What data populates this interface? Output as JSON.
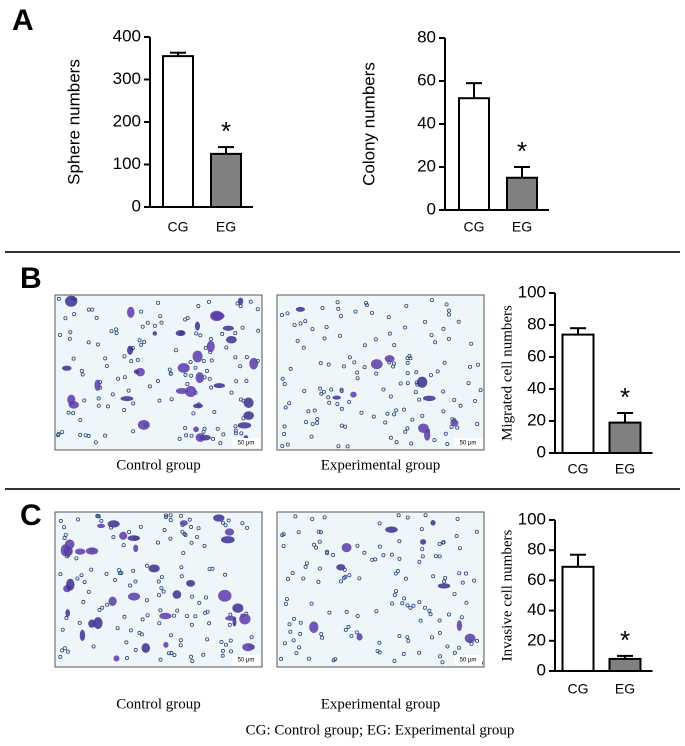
{
  "panels": [
    {
      "label": "A"
    },
    {
      "label": "B",
      "images": [
        {
          "caption": "Control group",
          "scale": "50 μm"
        },
        {
          "caption": "Experimental group",
          "scale": "50 μm"
        }
      ]
    },
    {
      "label": "C",
      "images": [
        {
          "caption": "Control group",
          "scale": "50 μm"
        },
        {
          "caption": "Experimental group",
          "scale": "50 μm"
        }
      ]
    }
  ],
  "footnote": "CG: Control group; EG: Experimental group",
  "chart_data": [
    {
      "type": "bar",
      "y_label": "Sphere numbers",
      "categories": [
        "CG",
        "EG"
      ],
      "values": [
        355,
        125
      ],
      "errors": [
        8,
        16
      ],
      "colors": [
        "#ffffff",
        "#808080"
      ],
      "annotation": "*",
      "ylim": [
        0,
        400
      ],
      "yticks": [
        0,
        100,
        200,
        300,
        400
      ]
    },
    {
      "type": "bar",
      "y_label": "Colony numbers",
      "categories": [
        "CG",
        "EG"
      ],
      "values": [
        52,
        15
      ],
      "errors": [
        7,
        5
      ],
      "colors": [
        "#ffffff",
        "#808080"
      ],
      "annotation": "*",
      "ylim": [
        0,
        80
      ],
      "yticks": [
        0,
        20,
        40,
        60,
        80
      ]
    },
    {
      "type": "bar",
      "y_label": "Migrated cell numbers",
      "categories": [
        "CG",
        "EG"
      ],
      "values": [
        74,
        19
      ],
      "errors": [
        4,
        6
      ],
      "colors": [
        "#ffffff",
        "#808080"
      ],
      "annotation": "*",
      "ylim": [
        0,
        100
      ],
      "yticks": [
        0,
        20,
        40,
        60,
        80,
        100
      ]
    },
    {
      "type": "bar",
      "y_label": "Invasive cell numbers",
      "categories": [
        "CG",
        "EG"
      ],
      "values": [
        69,
        8
      ],
      "errors": [
        8,
        2
      ],
      "colors": [
        "#ffffff",
        "#808080"
      ],
      "annotation": "*",
      "ylim": [
        0,
        100
      ],
      "yticks": [
        0,
        20,
        40,
        60,
        80,
        100
      ]
    }
  ]
}
